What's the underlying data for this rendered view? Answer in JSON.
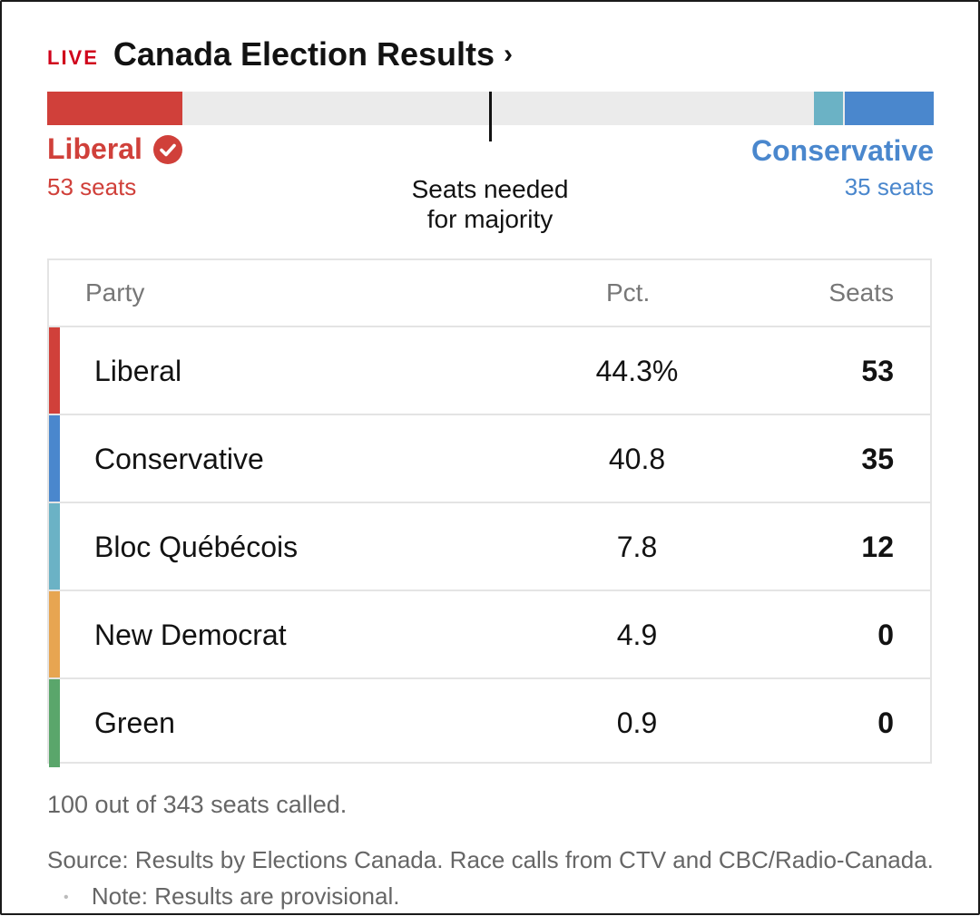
{
  "header": {
    "live_label": "LIVE",
    "title": "Canada Election Results",
    "chevron": "›"
  },
  "seat_bar": {
    "total_seats": 343,
    "majority_seats": 172,
    "segments": [
      {
        "party": "Liberal",
        "seats": 53,
        "color": "#d0403a",
        "side": "left"
      },
      {
        "party": "Bloc Québécois",
        "seats": 12,
        "color": "#6bb2c5",
        "side": "right"
      },
      {
        "party": "Conservative",
        "seats": 35,
        "color": "#4a87cd",
        "side": "right"
      }
    ],
    "left_label": {
      "name": "Liberal",
      "seats": "53 seats",
      "color": "#d0403a"
    },
    "right_label": {
      "name": "Conservative",
      "seats": "35 seats",
      "color": "#4a87cd"
    },
    "majority_label_line1": "Seats needed",
    "majority_label_line2": "for majority"
  },
  "table": {
    "headers": {
      "party": "Party",
      "pct": "Pct.",
      "seats": "Seats"
    },
    "rows": [
      {
        "party": "Liberal",
        "pct": "44.3%",
        "seats": "53",
        "color": "#d0403a"
      },
      {
        "party": "Conservative",
        "pct": "40.8",
        "seats": "35",
        "color": "#4a87cd"
      },
      {
        "party": "Bloc Québécois",
        "pct": "7.8",
        "seats": "12",
        "color": "#6bb2c5"
      },
      {
        "party": "New Democrat",
        "pct": "4.9",
        "seats": "0",
        "color": "#e7a551"
      },
      {
        "party": "Green",
        "pct": "0.9",
        "seats": "0",
        "color": "#5aa66b"
      }
    ]
  },
  "footer": {
    "called": "100 out of 343 seats called.",
    "source": "Source: Results by Elections Canada. Race calls from CTV and CBC/Radio-Canada.",
    "separator": "•",
    "note": "Note: Results are provisional."
  }
}
